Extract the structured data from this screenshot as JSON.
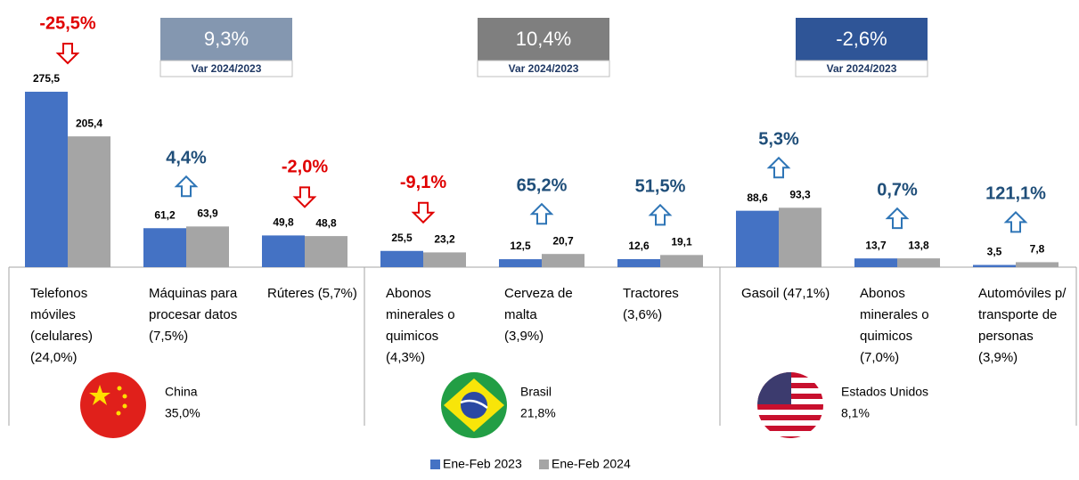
{
  "chart_data": {
    "type": "bar",
    "categories": [
      [
        "Telefonos",
        "móviles",
        "(celulares)",
        "(24,0%)"
      ],
      [
        "Máquinas para",
        "procesar datos",
        "(7,5%)"
      ],
      [
        "Rúteres (5,7%)"
      ],
      [
        "Abonos",
        "minerales o",
        "quimicos",
        "(4,3%)"
      ],
      [
        "Cerveza de",
        "malta",
        "(3,9%)"
      ],
      [
        "Tractores",
        "(3,6%)"
      ],
      [
        "Gasoil (47,1%)"
      ],
      [
        "Abonos",
        "minerales o",
        "quimicos",
        "(7,0%)"
      ],
      [
        "Automóviles p/",
        "transporte de",
        "personas",
        "(3,9%)"
      ]
    ],
    "series": [
      {
        "name": "Ene-Feb 2023",
        "color": "#4472c4",
        "values": [
          275.5,
          61.2,
          49.8,
          25.5,
          12.5,
          12.6,
          88.6,
          13.7,
          3.5
        ],
        "value_labels": [
          "275,5",
          "61,2",
          "49,8",
          "25,5",
          "12,5",
          "12,6",
          "88,6",
          "13,7",
          "3,5"
        ]
      },
      {
        "name": "Ene-Feb 2024",
        "color": "#a5a5a5",
        "values": [
          205.4,
          63.9,
          48.8,
          23.2,
          20.7,
          19.1,
          93.3,
          13.8,
          7.8
        ],
        "value_labels": [
          "205,4",
          "63,9",
          "48,8",
          "23,2",
          "20,7",
          "19,1",
          "93,3",
          "13,8",
          "7,8"
        ]
      }
    ],
    "changes": [
      {
        "value": -25.5,
        "label": "-25,5%"
      },
      {
        "value": 4.4,
        "label": "4,4%"
      },
      {
        "value": -2.0,
        "label": "-2,0%"
      },
      {
        "value": -9.1,
        "label": "-9,1%"
      },
      {
        "value": 65.2,
        "label": "65,2%"
      },
      {
        "value": 51.5,
        "label": "51,5%"
      },
      {
        "value": 5.3,
        "label": "5,3%"
      },
      {
        "value": 0.7,
        "label": "0,7%"
      },
      {
        "value": 121.1,
        "label": "121,1%"
      }
    ],
    "countries": [
      {
        "name": "China",
        "share": "35,0%",
        "var": "9,3%",
        "var_label": "Var 2024/2023",
        "color": "#8497b0"
      },
      {
        "name": "Brasil",
        "share": "21,8%",
        "var": "10,4%",
        "var_label": "Var 2024/2023",
        "color": "#7f7f7f"
      },
      {
        "name": "Estados Unidos",
        "share": "8,1%",
        "var": "-2,6%",
        "var_label": "Var 2024/2023",
        "color": "#2f5597"
      }
    ]
  }
}
